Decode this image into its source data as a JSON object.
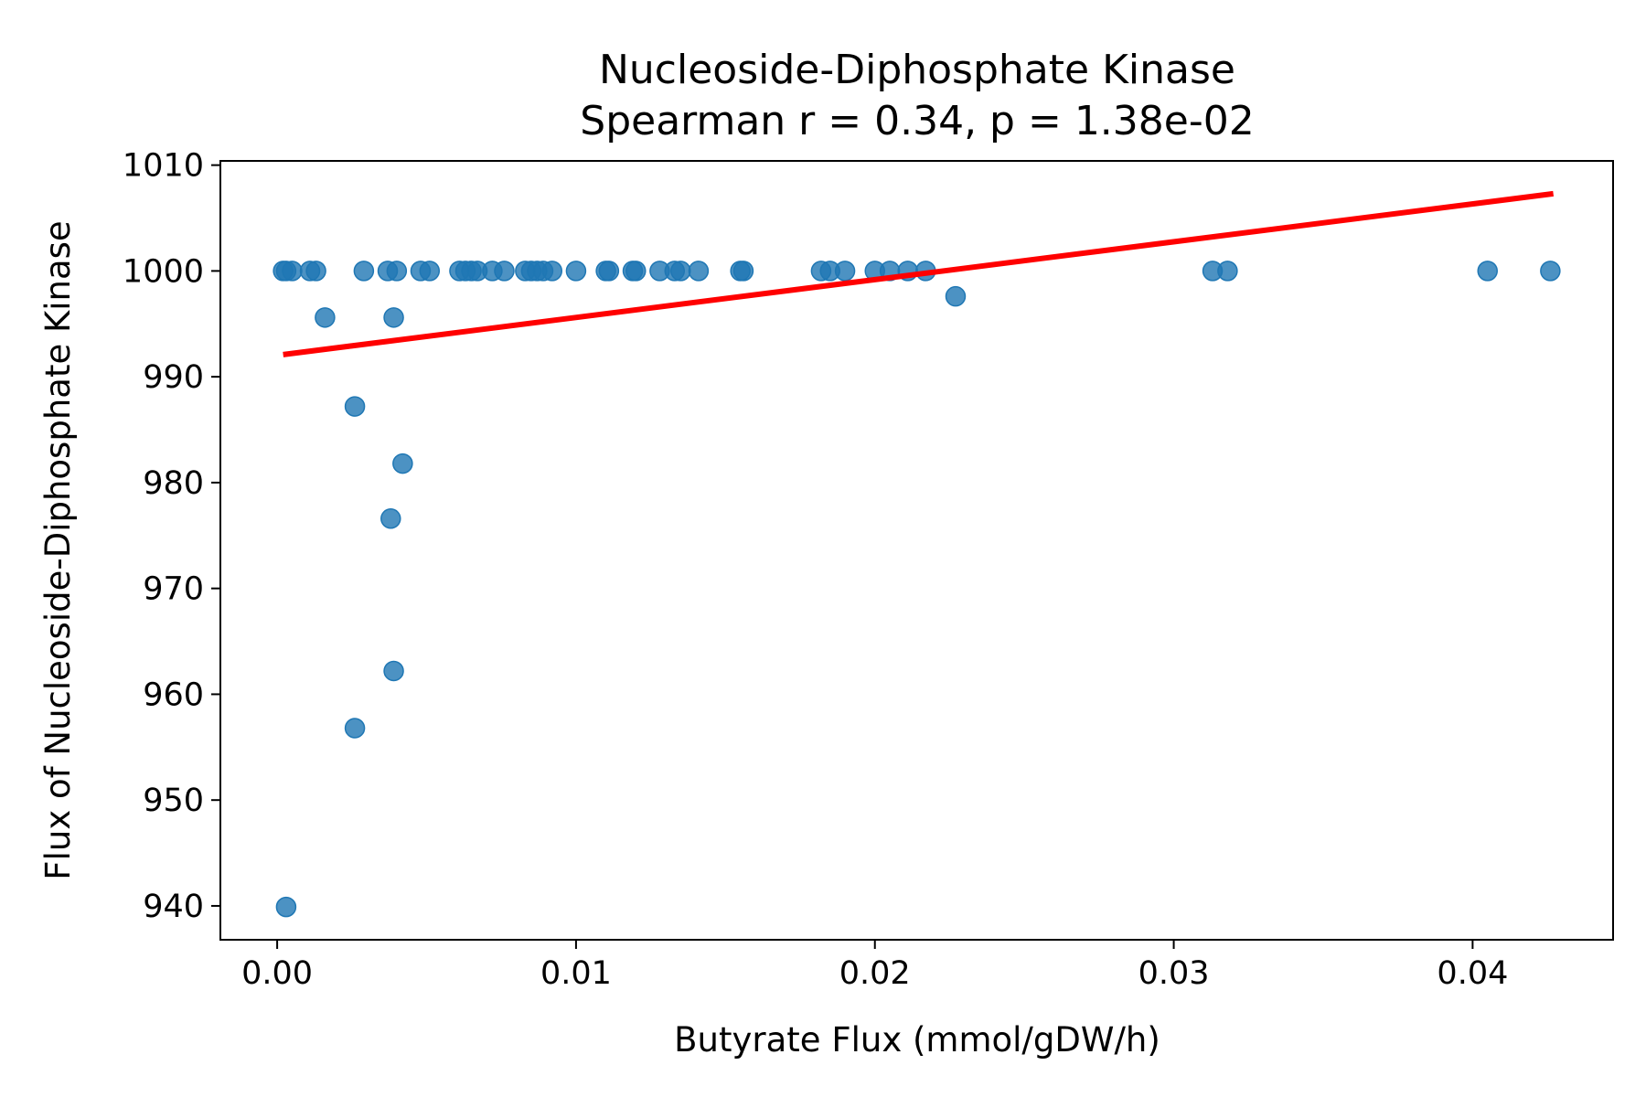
{
  "chart_data": {
    "type": "scatter",
    "title": "Nucleoside-Diphosphate Kinase",
    "subtitle": "Spearman r = 0.34, p = 1.38e-02",
    "xlabel": "Butyrate Flux (mmol/gDW/h)",
    "ylabel": "Flux of Nucleoside-Diphosphate Kinase",
    "xlim": [
      -0.0019,
      0.0447
    ],
    "ylim": [
      936.8,
      1010.4
    ],
    "xticks": [
      0.0,
      0.01,
      0.02,
      0.03,
      0.04
    ],
    "xtick_labels": [
      "0.00",
      "0.01",
      "0.02",
      "0.03",
      "0.04"
    ],
    "yticks": [
      940,
      950,
      960,
      970,
      980,
      990,
      1000,
      1010
    ],
    "ytick_labels": [
      "940",
      "950",
      "960",
      "970",
      "980",
      "990",
      "1000",
      "1010"
    ],
    "grid": false,
    "point_color": "#1f77b4",
    "line_color": "#ff0000",
    "trend_line": {
      "x": [
        0.0002,
        0.0427
      ],
      "y": [
        992.1,
        1007.3
      ]
    },
    "points": [
      {
        "x": 0.0002,
        "y": 1000
      },
      {
        "x": 0.0003,
        "y": 1000
      },
      {
        "x": 0.0005,
        "y": 1000
      },
      {
        "x": 0.0011,
        "y": 1000
      },
      {
        "x": 0.0013,
        "y": 1000
      },
      {
        "x": 0.0029,
        "y": 1000
      },
      {
        "x": 0.0037,
        "y": 1000
      },
      {
        "x": 0.004,
        "y": 1000
      },
      {
        "x": 0.0048,
        "y": 1000
      },
      {
        "x": 0.0051,
        "y": 1000
      },
      {
        "x": 0.0061,
        "y": 1000
      },
      {
        "x": 0.0063,
        "y": 1000
      },
      {
        "x": 0.0065,
        "y": 1000
      },
      {
        "x": 0.0067,
        "y": 1000
      },
      {
        "x": 0.0072,
        "y": 1000
      },
      {
        "x": 0.0076,
        "y": 1000
      },
      {
        "x": 0.0083,
        "y": 1000
      },
      {
        "x": 0.0085,
        "y": 1000
      },
      {
        "x": 0.0087,
        "y": 1000
      },
      {
        "x": 0.0089,
        "y": 1000
      },
      {
        "x": 0.0092,
        "y": 1000
      },
      {
        "x": 0.01,
        "y": 1000
      },
      {
        "x": 0.011,
        "y": 1000
      },
      {
        "x": 0.0111,
        "y": 1000
      },
      {
        "x": 0.0119,
        "y": 1000
      },
      {
        "x": 0.012,
        "y": 1000
      },
      {
        "x": 0.0128,
        "y": 1000
      },
      {
        "x": 0.0133,
        "y": 1000
      },
      {
        "x": 0.0135,
        "y": 1000
      },
      {
        "x": 0.0141,
        "y": 1000
      },
      {
        "x": 0.0155,
        "y": 1000
      },
      {
        "x": 0.0156,
        "y": 1000
      },
      {
        "x": 0.0182,
        "y": 1000
      },
      {
        "x": 0.0185,
        "y": 1000
      },
      {
        "x": 0.019,
        "y": 1000
      },
      {
        "x": 0.02,
        "y": 1000
      },
      {
        "x": 0.0205,
        "y": 1000
      },
      {
        "x": 0.0211,
        "y": 1000
      },
      {
        "x": 0.0217,
        "y": 1000
      },
      {
        "x": 0.0313,
        "y": 1000
      },
      {
        "x": 0.0318,
        "y": 1000
      },
      {
        "x": 0.0405,
        "y": 1000
      },
      {
        "x": 0.0426,
        "y": 1000
      },
      {
        "x": 0.0016,
        "y": 995.6
      },
      {
        "x": 0.0039,
        "y": 995.6
      },
      {
        "x": 0.0227,
        "y": 997.6
      },
      {
        "x": 0.0026,
        "y": 987.2
      },
      {
        "x": 0.0042,
        "y": 981.8
      },
      {
        "x": 0.0038,
        "y": 976.6
      },
      {
        "x": 0.0039,
        "y": 962.2
      },
      {
        "x": 0.0026,
        "y": 956.8
      },
      {
        "x": 0.0003,
        "y": 939.9
      }
    ]
  }
}
